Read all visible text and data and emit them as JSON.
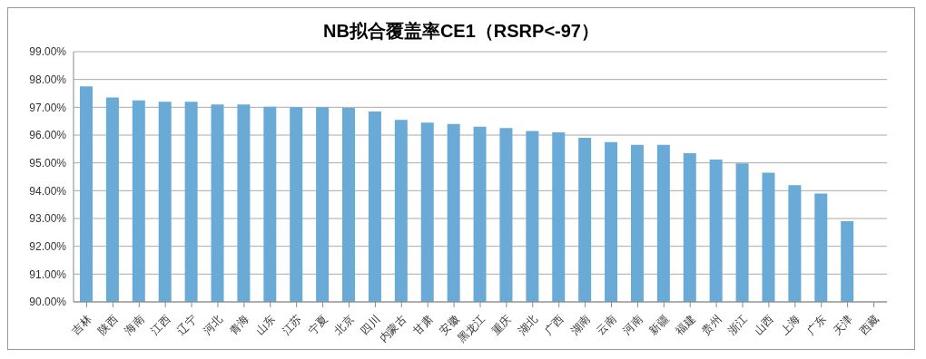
{
  "chart_data": {
    "type": "bar",
    "title": "NB拟合覆盖率CE1（RSRP<-97）",
    "categories": [
      "吉林",
      "陕西",
      "海南",
      "江西",
      "辽宁",
      "河北",
      "青海",
      "山东",
      "江苏",
      "宁夏",
      "北京",
      "四川",
      "内蒙古",
      "甘肃",
      "安徽",
      "黑龙江",
      "重庆",
      "湖北",
      "广西",
      "湖南",
      "云南",
      "河南",
      "新疆",
      "福建",
      "贵州",
      "浙江",
      "山西",
      "上海",
      "广东",
      "天津",
      "西藏"
    ],
    "values": [
      97.75,
      97.35,
      97.25,
      97.2,
      97.2,
      97.1,
      97.1,
      97.02,
      97.0,
      97.0,
      96.98,
      96.85,
      96.55,
      96.45,
      96.4,
      96.3,
      96.25,
      96.15,
      96.1,
      95.9,
      95.75,
      95.65,
      95.65,
      95.35,
      95.12,
      94.98,
      94.65,
      94.2,
      93.9,
      92.9,
      null
    ],
    "color": "#6aaad6",
    "ylim": [
      90,
      99
    ],
    "yticks": [
      {
        "value": 90,
        "label": "90.00%"
      },
      {
        "value": 91,
        "label": "91.00%"
      },
      {
        "value": 92,
        "label": "92.00%"
      },
      {
        "value": 93,
        "label": "93.00%"
      },
      {
        "value": 94,
        "label": "94.00%"
      },
      {
        "value": 95,
        "label": "95.00%"
      },
      {
        "value": 96,
        "label": "96.00%"
      },
      {
        "value": 97,
        "label": "97.00%"
      },
      {
        "value": 98,
        "label": "98.00%"
      },
      {
        "value": 99,
        "label": "99.00%"
      }
    ],
    "grid": "y"
  }
}
